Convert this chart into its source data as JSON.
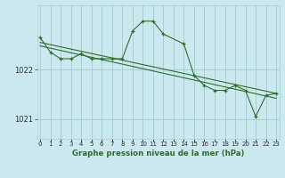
{
  "title": "Graphe pression niveau de la mer (hPa)",
  "background_color": "#cce8ef",
  "grid_color": "#aacfd8",
  "line_color": "#2d6e2d",
  "x_labels": [
    "0",
    "1",
    "2",
    "3",
    "4",
    "5",
    "6",
    "7",
    "8",
    "9",
    "10",
    "11",
    "12",
    "13",
    "14",
    "15",
    "16",
    "17",
    "18",
    "19",
    "20",
    "21",
    "22",
    "23"
  ],
  "yticks": [
    1021,
    1022
  ],
  "ylim": [
    1020.6,
    1023.3
  ],
  "xlim": [
    -0.3,
    23.3
  ],
  "zigzag_x": [
    0,
    1,
    2,
    3,
    4,
    5,
    6,
    7,
    8,
    9,
    10,
    11,
    12,
    14,
    15,
    16,
    17,
    18,
    19,
    20,
    21,
    22,
    23
  ],
  "zigzag_y": [
    1022.65,
    1022.35,
    1022.22,
    1022.22,
    1022.32,
    1022.22,
    1022.22,
    1022.22,
    1022.22,
    1022.78,
    1022.98,
    1022.98,
    1022.72,
    1022.52,
    1021.88,
    1021.68,
    1021.58,
    1021.58,
    1021.68,
    1021.58,
    1021.05,
    1021.48,
    1021.52
  ],
  "line1_x": [
    0,
    23
  ],
  "line1_y": [
    1022.55,
    1021.52
  ],
  "line2_x": [
    0,
    23
  ],
  "line2_y": [
    1022.48,
    1021.42
  ]
}
